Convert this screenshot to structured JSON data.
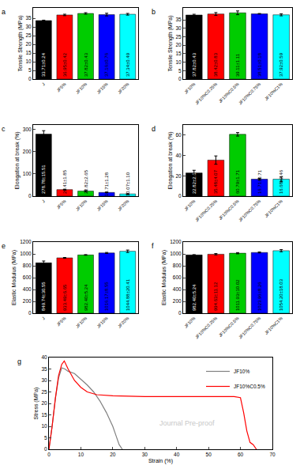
{
  "watermark": "Journal Pre-proof",
  "chart_data": [
    {
      "type": "bar",
      "title": "a",
      "ylabel": "Tensile Strength (MPa)",
      "categories": [
        "J",
        "JF5%",
        "JF10%",
        "JF15%",
        "JF20%"
      ],
      "values": [
        33.71,
        36.95,
        37.82,
        37.16,
        37.34
      ],
      "errors": [
        0.24,
        0.42,
        0.43,
        0.76,
        0.49
      ],
      "value_labels": [
        "33.71±0.24",
        "36.95±0.42",
        "37.82±0.43",
        "37.16±0.76",
        "37.34±0.49"
      ],
      "colors": [
        "#000000",
        "#ff0000",
        "#00cc00",
        "#0000ff",
        "#00ffff"
      ],
      "ylim": [
        0,
        41
      ],
      "yticks": [
        0,
        5,
        10,
        15,
        20,
        25,
        30,
        35
      ],
      "data_labels": true
    },
    {
      "type": "bar",
      "title": "b",
      "ylabel": "Tensile Strength (MPa)",
      "categories": [
        "JF10%",
        "JF10%C0.25%",
        "JF10%C0.5%",
        "JF10%C0.75%",
        "JF10%C1%"
      ],
      "values": [
        37.82,
        38.42,
        39.11,
        38.51,
        37.92
      ],
      "errors": [
        0.43,
        0.83,
        1.11,
        0.18,
        0.59
      ],
      "value_labels": [
        "37.82±0.43",
        "38.42±0.83",
        "39.11±1.11",
        "38.51±0.18",
        "37.92±0.59"
      ],
      "colors": [
        "#000000",
        "#ff0000",
        "#00cc00",
        "#0000ff",
        "#00ffff"
      ],
      "ylim": [
        0,
        42
      ],
      "yticks": [
        0,
        5,
        10,
        15,
        20,
        25,
        30,
        35
      ],
      "data_labels": true
    },
    {
      "type": "bar",
      "title": "c",
      "ylabel": "Elongation at break (%)",
      "categories": [
        "J",
        "JF5%",
        "JF10%",
        "JF15%",
        "JF20%"
      ],
      "values": [
        278.78,
        29.41,
        22.82,
        16.71,
        10.07
      ],
      "errors": [
        15.51,
        1.85,
        2.65,
        1.28,
        1.1
      ],
      "value_labels": [
        "278.78±15.51",
        "29.41±1.85",
        "22.82±2.65",
        "16.71±1.28",
        "10.07±1.10"
      ],
      "colors": [
        "#000000",
        "#ff0000",
        "#00cc00",
        "#0000ff",
        "#00ffff"
      ],
      "ylim": [
        0,
        320
      ],
      "yticks": [
        0,
        100,
        200,
        300
      ],
      "data_labels": true
    },
    {
      "type": "bar",
      "title": "d",
      "ylabel": "Elongation at break (%)",
      "categories": [
        "JF10%",
        "JF10%C0.25%",
        "JF10%C0.5%",
        "JF10%C0.75%",
        "JF10%C1%"
      ],
      "values": [
        22.82,
        35.48,
        60.79,
        16.71,
        16.68
      ],
      "errors": [
        2.65,
        4.07,
        1.71,
        0.71,
        2.46
      ],
      "value_labels": [
        "22.82±2.65",
        "35.48±4.07",
        "60.79±1.71",
        "16.71±0.71",
        "16.68±2.46"
      ],
      "colors": [
        "#000000",
        "#ff0000",
        "#00cc00",
        "#0000ff",
        "#00ffff"
      ],
      "ylim": [
        0,
        70
      ],
      "yticks": [
        0,
        20,
        40,
        60
      ],
      "data_labels": true
    },
    {
      "type": "bar",
      "title": "e",
      "ylabel": "Elastic Modulus (MPa)",
      "categories": [
        "J",
        "JF5%",
        "JF10%",
        "JF15%",
        "JF20%"
      ],
      "values": [
        849.74,
        933.49,
        982.4,
        1016.17,
        1044.88
      ],
      "errors": [
        30.55,
        6.65,
        5.24,
        8.55,
        20.41
      ],
      "value_labels": [
        "849.74±30.55",
        "933.49±6.65",
        "982.40±5.24",
        "1016.17±8.55",
        "1044.88±20.41"
      ],
      "colors": [
        "#000000",
        "#ff0000",
        "#00cc00",
        "#0000ff",
        "#00ffff"
      ],
      "ylim": [
        0,
        1200
      ],
      "yticks": [
        0,
        200,
        400,
        600,
        800,
        1000,
        1200
      ],
      "data_labels": true
    },
    {
      "type": "bar",
      "title": "f",
      "ylabel": "Elastic Modulus (MPa)",
      "categories": [
        "JF10%",
        "JF10%C0.25%",
        "JF10%C0.5%",
        "JF10%C0.75%",
        "JF10%C1%"
      ],
      "values": [
        982.4,
        994.63,
        1011.93,
        1023.96,
        1054.2
      ],
      "errors": [
        5.24,
        11.12,
        10.02,
        8.26,
        18.03
      ],
      "value_labels": [
        "982.40±5.24",
        "994.63±11.12",
        "1011.93±10.02",
        "1023.96±8.26",
        "1054.20±18.03"
      ],
      "colors": [
        "#000000",
        "#ff0000",
        "#00cc00",
        "#0000ff",
        "#00ffff"
      ],
      "ylim": [
        0,
        1200
      ],
      "yticks": [
        0,
        200,
        400,
        600,
        800,
        1000,
        1200
      ],
      "data_labels": true
    },
    {
      "type": "line",
      "title": "g",
      "xlabel": "Strain (%)",
      "ylabel": "Stress (MPa)",
      "legend": "top-right",
      "series": [
        {
          "name": "JF10%",
          "color": "#808080",
          "x": [
            0,
            1,
            2,
            3,
            4,
            5,
            6,
            8,
            10,
            12,
            14,
            16,
            18,
            20,
            21,
            22,
            23
          ],
          "values": [
            0,
            10,
            22,
            31,
            35.5,
            35,
            34,
            33,
            30.5,
            28,
            25,
            21,
            16,
            10,
            6,
            2,
            0
          ]
        },
        {
          "name": "JF10%C0.5%",
          "color": "#ff0000",
          "x": [
            0,
            1,
            2,
            3,
            4,
            4.8,
            6,
            8,
            10,
            12,
            15,
            20,
            30,
            40,
            50,
            55,
            58,
            60,
            61,
            62,
            63,
            64,
            65
          ],
          "values": [
            0,
            10,
            22,
            32,
            37,
            38.5,
            35,
            30,
            27,
            25,
            23.8,
            23.3,
            23,
            23,
            23.2,
            23,
            23,
            22.5,
            16,
            8,
            3,
            2,
            0
          ]
        }
      ],
      "xlim": [
        0,
        70
      ],
      "xticks": [
        0,
        10,
        20,
        30,
        40,
        50,
        60,
        70
      ],
      "ylim": [
        0,
        40
      ],
      "yticks": [
        0,
        5,
        10,
        15,
        20,
        25,
        30,
        35,
        40
      ]
    }
  ]
}
